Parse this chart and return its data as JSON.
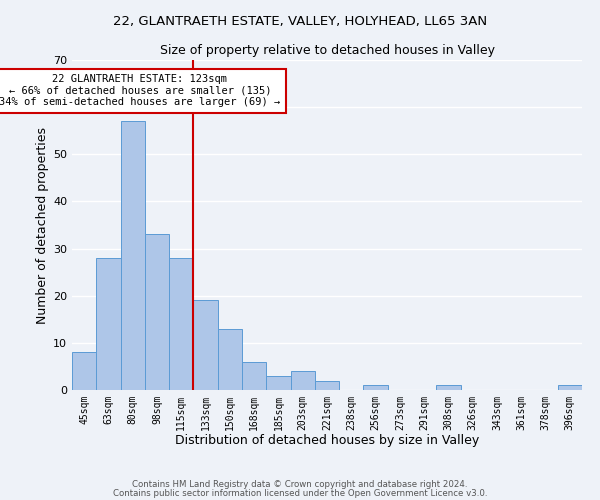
{
  "title1": "22, GLANTRAETH ESTATE, VALLEY, HOLYHEAD, LL65 3AN",
  "title2": "Size of property relative to detached houses in Valley",
  "xlabel": "Distribution of detached houses by size in Valley",
  "ylabel": "Number of detached properties",
  "bar_labels": [
    "45sqm",
    "63sqm",
    "80sqm",
    "98sqm",
    "115sqm",
    "133sqm",
    "150sqm",
    "168sqm",
    "185sqm",
    "203sqm",
    "221sqm",
    "238sqm",
    "256sqm",
    "273sqm",
    "291sqm",
    "308sqm",
    "326sqm",
    "343sqm",
    "361sqm",
    "378sqm",
    "396sqm"
  ],
  "bar_values": [
    8,
    28,
    57,
    33,
    28,
    19,
    13,
    6,
    3,
    4,
    2,
    0,
    1,
    0,
    0,
    1,
    0,
    0,
    0,
    0,
    1
  ],
  "bar_color": "#aec6e8",
  "bar_edge_color": "#5b9bd5",
  "vline_color": "#cc0000",
  "annotation_line1": "22 GLANTRAETH ESTATE: 123sqm",
  "annotation_line2": "← 66% of detached houses are smaller (135)",
  "annotation_line3": "34% of semi-detached houses are larger (69) →",
  "annotation_box_color": "#ffffff",
  "annotation_box_edge": "#cc0000",
  "ylim": [
    0,
    70
  ],
  "yticks": [
    0,
    10,
    20,
    30,
    40,
    50,
    60,
    70
  ],
  "footer1": "Contains HM Land Registry data © Crown copyright and database right 2024.",
  "footer2": "Contains public sector information licensed under the Open Government Licence v3.0.",
  "bg_color": "#eef2f8",
  "grid_color": "#ffffff",
  "title_fontsize": 9.5,
  "subtitle_fontsize": 9,
  "annotation_fontsize": 7.5
}
